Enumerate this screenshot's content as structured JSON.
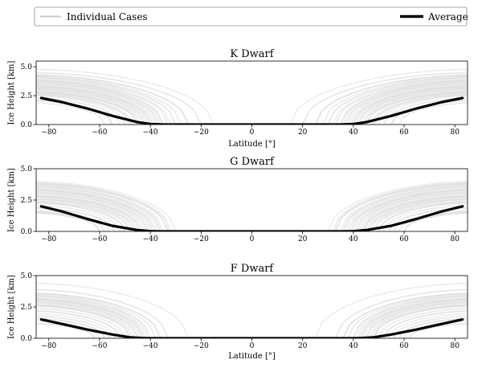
{
  "legend": {
    "individual_label": "Individual Cases",
    "average_label": "Average"
  },
  "colors": {
    "average": "#000000",
    "individual": "#9a9a9a",
    "axes": "#000000",
    "background": "#ffffff"
  },
  "chart_data": [
    {
      "type": "line",
      "title": "K Dwarf",
      "xlabel": "Latitude [°]",
      "ylabel": "Ice Height [km]",
      "xlim": [
        -85,
        85
      ],
      "ylim": [
        0,
        5.5
      ],
      "xticks": [
        -80,
        -60,
        -40,
        -20,
        0,
        20,
        40,
        60,
        80
      ],
      "yticks": [
        0.0,
        2.5,
        5.0
      ],
      "ytick_labels": [
        "0.0",
        "2.5",
        "5.0"
      ],
      "series": [
        {
          "name": "Average",
          "x": [
            -83,
            -75,
            -65,
            -55,
            -45,
            -40,
            -35,
            -30,
            30,
            35,
            40,
            45,
            55,
            65,
            75,
            83
          ],
          "y": [
            2.3,
            1.95,
            1.4,
            0.75,
            0.2,
            0.05,
            0.0,
            0.0,
            0.0,
            0.0,
            0.05,
            0.2,
            0.75,
            1.4,
            1.95,
            2.3
          ]
        }
      ],
      "individual_cases": {
        "edge_latitude": [
          -15,
          -20,
          -25,
          -28,
          -30,
          -32,
          -33,
          -35,
          -36,
          -37,
          -38,
          -39,
          -40,
          -41,
          -42,
          -43,
          -44,
          -45,
          -47,
          -48,
          -50,
          -52,
          -55,
          -58
        ],
        "max_height": [
          4.8,
          4.5,
          4.3,
          4.2,
          4.1,
          4.0,
          3.9,
          3.8,
          3.7,
          3.6,
          3.5,
          3.4,
          3.3,
          3.2,
          3.1,
          3.0,
          2.9,
          2.8,
          2.7,
          2.6,
          2.5,
          2.3,
          2.1,
          1.9
        ]
      }
    },
    {
      "type": "line",
      "title": "G Dwarf",
      "xlabel": "",
      "ylabel": "Ice Height [km]",
      "xlim": [
        -85,
        85
      ],
      "ylim": [
        0,
        5.0
      ],
      "xticks": [
        -80,
        -60,
        -40,
        -20,
        0,
        20,
        40,
        60,
        80
      ],
      "yticks": [
        0.0,
        2.5,
        5.0
      ],
      "ytick_labels": [
        "0.0",
        "2.5",
        "5.0"
      ],
      "series": [
        {
          "name": "Average",
          "x": [
            -83,
            -75,
            -65,
            -55,
            -45,
            -40,
            -36,
            36,
            40,
            45,
            55,
            65,
            75,
            83
          ],
          "y": [
            2.0,
            1.6,
            1.0,
            0.45,
            0.1,
            0.02,
            0.0,
            0.0,
            0.02,
            0.1,
            0.45,
            1.0,
            1.6,
            2.0
          ]
        }
      ],
      "individual_cases": {
        "edge_latitude": [
          -30,
          -32,
          -33,
          -35,
          -36,
          -37,
          -38,
          -39,
          -40,
          -41,
          -42,
          -43,
          -44,
          -45,
          -46,
          -47,
          -48,
          -50,
          -52,
          -54,
          -56,
          -58,
          -60
        ],
        "max_height": [
          4.0,
          3.9,
          3.8,
          3.7,
          3.6,
          3.5,
          3.4,
          3.3,
          3.2,
          3.1,
          3.0,
          2.9,
          2.8,
          2.7,
          2.6,
          2.5,
          2.4,
          2.3,
          2.1,
          1.9,
          1.7,
          1.6,
          1.5
        ]
      }
    },
    {
      "type": "line",
      "title": "F Dwarf",
      "xlabel": "Latitude [°]",
      "ylabel": "Ice Height [km]",
      "xlim": [
        -85,
        85
      ],
      "ylim": [
        0,
        5.0
      ],
      "xticks": [
        -80,
        -60,
        -40,
        -20,
        0,
        20,
        40,
        60,
        80
      ],
      "yticks": [
        0.0,
        2.5,
        5.0
      ],
      "ytick_labels": [
        "0.0",
        "2.5",
        "5.0"
      ],
      "series": [
        {
          "name": "Average",
          "x": [
            -83,
            -75,
            -65,
            -55,
            -48,
            -43,
            -40,
            40,
            43,
            48,
            55,
            65,
            75,
            83
          ],
          "y": [
            1.5,
            1.15,
            0.7,
            0.3,
            0.08,
            0.02,
            0.0,
            0.0,
            0.02,
            0.08,
            0.3,
            0.7,
            1.15,
            1.5
          ]
        }
      ],
      "individual_cases": {
        "edge_latitude": [
          -25,
          -33,
          -36,
          -38,
          -40,
          -41,
          -42,
          -43,
          -44,
          -45,
          -46,
          -47,
          -48,
          -50,
          -52,
          -54,
          -56,
          -58,
          -60,
          -62
        ],
        "max_height": [
          4.4,
          3.9,
          3.6,
          3.5,
          3.4,
          3.3,
          3.2,
          3.1,
          3.0,
          2.9,
          2.8,
          2.7,
          2.6,
          2.4,
          2.2,
          2.0,
          1.8,
          1.6,
          1.4,
          1.2
        ]
      }
    }
  ]
}
